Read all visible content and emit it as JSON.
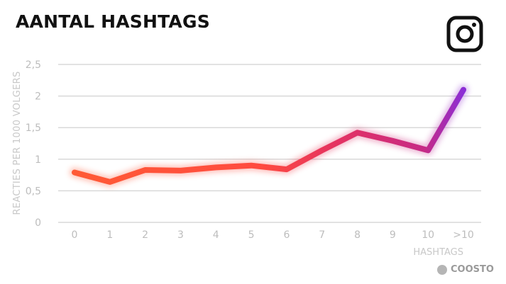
{
  "page": {
    "title": "AANTAL HASHTAGS",
    "brand": "COOSTO",
    "logo_icon": "instagram-icon"
  },
  "chart_data": {
    "type": "line",
    "title": "AANTAL HASHTAGS",
    "xlabel": "HASHTAGS",
    "ylabel": "REACTIES PER 1000 VOLGERS",
    "categories": [
      "0",
      "1",
      "2",
      "3",
      "4",
      "5",
      "6",
      "7",
      "8",
      "9",
      "10",
      ">10"
    ],
    "values": [
      0.79,
      0.64,
      0.83,
      0.82,
      0.87,
      0.9,
      0.84,
      1.14,
      1.42,
      1.29,
      1.14,
      2.1
    ],
    "yticks": [
      "0",
      "0,5",
      "1",
      "1,5",
      "2",
      "2,5"
    ],
    "ylim": [
      0,
      2.5
    ],
    "grid": true,
    "legend": "none",
    "colors": {
      "start": "#ff5a36",
      "mid": "#e33263",
      "end": "#8b2ed6",
      "grid": "#d9d9d9",
      "tick": "#bdbdbd"
    }
  }
}
